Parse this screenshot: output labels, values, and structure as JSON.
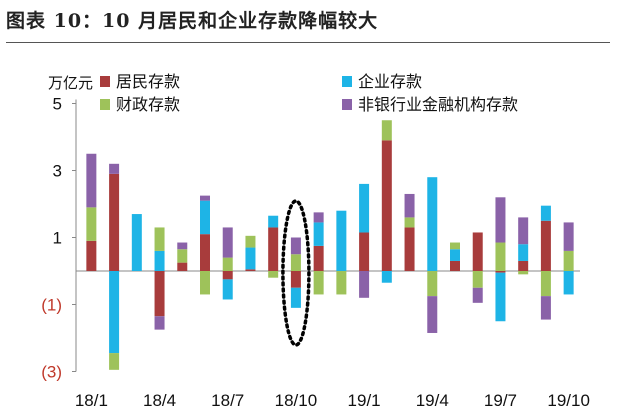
{
  "figure_title": "图表 10：10 月居民和企业存款降幅较大",
  "chart_data": {
    "type": "bar",
    "stacked": true,
    "unit": "万亿元",
    "ylim": [
      -3,
      5
    ],
    "yticks": [
      {
        "value": 5,
        "label": "5"
      },
      {
        "value": 3,
        "label": "3"
      },
      {
        "value": 1,
        "label": "1"
      },
      {
        "value": -1,
        "label": "(1)"
      },
      {
        "value": -3,
        "label": "(3)"
      }
    ],
    "x_tick_labels": [
      {
        "index": 0,
        "label": "18/1"
      },
      {
        "index": 3,
        "label": "18/4"
      },
      {
        "index": 6,
        "label": "18/7"
      },
      {
        "index": 9,
        "label": "18/10"
      },
      {
        "index": 12,
        "label": "19/1"
      },
      {
        "index": 15,
        "label": "19/4"
      },
      {
        "index": 18,
        "label": "19/7"
      },
      {
        "index": 21,
        "label": "19/10"
      }
    ],
    "categories": [
      "18/1",
      "18/2",
      "18/3",
      "18/4",
      "18/5",
      "18/6",
      "18/7",
      "18/8",
      "18/9",
      "18/10",
      "18/11",
      "18/12",
      "19/1",
      "19/2",
      "19/3",
      "19/4",
      "19/5",
      "19/6",
      "19/7",
      "19/8",
      "19/9",
      "19/10"
    ],
    "series": [
      {
        "name": "居民存款",
        "color": "#a83c3c",
        "values": [
          0.9,
          2.9,
          0,
          -1.35,
          0.25,
          1.1,
          -0.25,
          0.05,
          1.3,
          -0.5,
          0.75,
          0,
          1.15,
          3.9,
          1.3,
          0,
          0.3,
          1.15,
          -0.05,
          0.3,
          1.5,
          0
        ]
      },
      {
        "name": "企业存款",
        "color": "#1eb4e6",
        "values": [
          0,
          -2.45,
          1.7,
          0.6,
          0,
          1.0,
          -0.6,
          0.65,
          0.35,
          -0.6,
          0.7,
          1.8,
          1.45,
          -0.35,
          0,
          2.8,
          0.35,
          0,
          -1.45,
          0.5,
          0.45,
          -0.7
        ]
      },
      {
        "name": "财政存款",
        "color": "#9ec25a",
        "values": [
          1.0,
          -0.5,
          0,
          0.7,
          0.4,
          -0.7,
          0.4,
          0.35,
          -0.2,
          0.5,
          -0.7,
          -0.7,
          0,
          0.6,
          0.3,
          -0.75,
          0.2,
          -0.5,
          0.85,
          -0.1,
          -0.75,
          0.6
        ]
      },
      {
        "name": "非银行业金融机构存款",
        "color": "#8a62a8",
        "values": [
          1.6,
          0.3,
          0,
          -0.4,
          0.2,
          0.15,
          0.9,
          0,
          0,
          0.5,
          0.3,
          0,
          -0.8,
          0,
          0.7,
          -1.1,
          0,
          -0.45,
          1.35,
          0.8,
          -0.7,
          0.85
        ]
      }
    ],
    "annotation": "dashed ellipse around 18/10",
    "legend": "top, two columns"
  }
}
